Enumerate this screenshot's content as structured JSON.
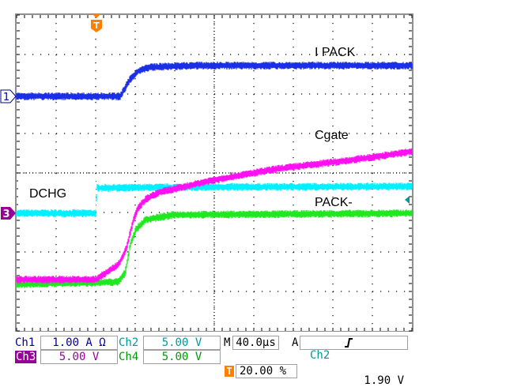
{
  "chart_data": {
    "type": "line",
    "title": "",
    "xlabel": "",
    "ylabel": "",
    "x_units": "µs (relative to trigger)",
    "y_units": "divisions",
    "xlim": [
      -80,
      320
    ],
    "ylim": [
      -4,
      4
    ],
    "grid": true,
    "series": [
      {
        "name": "I PACK",
        "channel": "Ch1",
        "color": "#1a2fe6",
        "x": [
          -80,
          25,
          35,
          43,
          55,
          100,
          320
        ],
        "y": [
          1.94,
          1.94,
          2.38,
          2.58,
          2.68,
          2.72,
          2.72
        ]
      },
      {
        "name": "DCHG",
        "channel": "Ch2",
        "color": "#00f0ff",
        "x": [
          -80,
          0.5,
          1,
          100,
          320
        ],
        "y": [
          -1.02,
          -1.02,
          -0.38,
          -0.36,
          -0.34
        ]
      },
      {
        "name": "Cgate",
        "channel": "Ch3",
        "color": "#ff10f0",
        "x": [
          -80,
          0,
          23,
          31,
          38,
          43,
          51,
          63,
          119,
          183,
          263,
          320
        ],
        "y": [
          -2.7,
          -2.7,
          -2.32,
          -1.92,
          -1.22,
          -0.88,
          -0.66,
          -0.5,
          -0.18,
          0.1,
          0.34,
          0.54
        ]
      },
      {
        "name": "PACK-",
        "channel": "Ch4",
        "color": "#20e820",
        "x": [
          -80,
          23,
          30,
          35,
          41,
          51,
          79,
          320
        ],
        "y": [
          -2.82,
          -2.76,
          -2.52,
          -1.82,
          -1.42,
          -1.18,
          -1.06,
          -1.02
        ]
      }
    ],
    "annotations": {
      "ipack": "I PACK",
      "cgate": "Cgate",
      "dchg": "DCHG",
      "packminus": "PACK-"
    },
    "markers": {
      "ch1_ground": "1",
      "ch3_ground": "3",
      "trigger_position": "T",
      "trigger_level_color": "#009999"
    }
  },
  "status": {
    "ch1": {
      "label": "Ch1",
      "scale": "1.00 A Ω",
      "color": "#000090"
    },
    "ch2": {
      "label": "Ch2",
      "scale": "5.00 V",
      "color": "#009999"
    },
    "ch3": {
      "label": "Ch3",
      "scale": "5.00 V",
      "color": "#990099"
    },
    "ch4": {
      "label": "Ch4",
      "scale": "5.00 V",
      "color": "#009900"
    },
    "timebase": {
      "label": "M",
      "value": "40.0µs"
    },
    "trigger": {
      "label": "A",
      "source": "Ch2",
      "slope": "rising-edge-icon",
      "level": "1.90 V"
    },
    "trigger_position": {
      "icon": "T",
      "value": "20.00 %",
      "color": "#ff8000"
    }
  }
}
